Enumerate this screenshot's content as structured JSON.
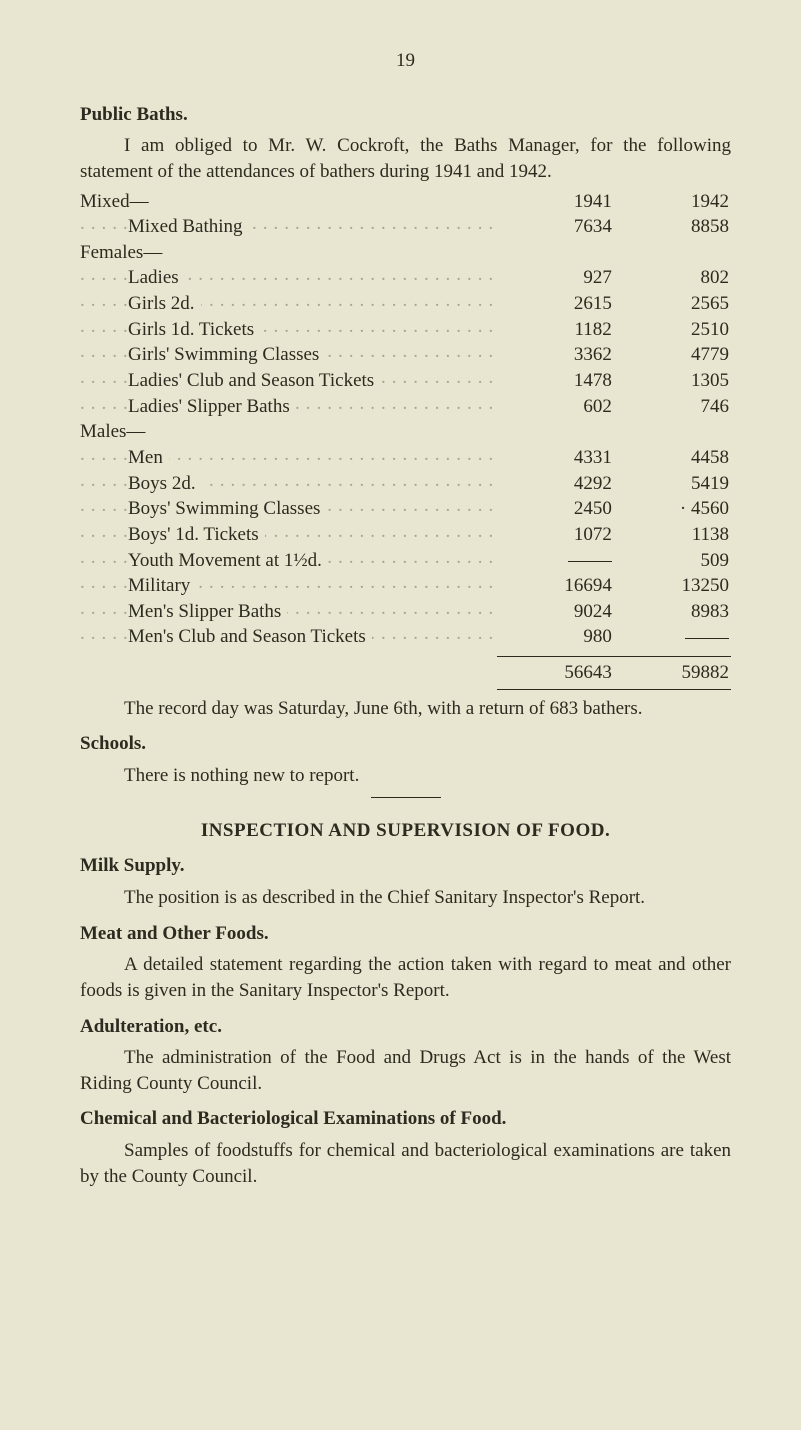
{
  "page_number": "19",
  "public_baths": {
    "heading": "Public Baths.",
    "intro": "I am obliged to Mr. W. Cockroft, the Baths Manager, for the following statement of the attendances of bathers during 1941 and 1942.",
    "year_a": "1941",
    "year_b": "1942",
    "groups": {
      "mixed": {
        "label": "Mixed—",
        "rows": [
          {
            "label": "Mixed Bathing",
            "a": "7634",
            "b": "8858"
          }
        ]
      },
      "females": {
        "label": "Females—",
        "rows": [
          {
            "label": "Ladies",
            "a": "927",
            "b": "802"
          },
          {
            "label": "Girls 2d.",
            "a": "2615",
            "b": "2565"
          },
          {
            "label": "Girls 1d. Tickets",
            "a": "1182",
            "b": "2510"
          },
          {
            "label": "Girls' Swimming Classes",
            "a": "3362",
            "b": "4779"
          },
          {
            "label": "Ladies' Club and Season Tickets",
            "a": "1478",
            "b": "1305"
          },
          {
            "label": "Ladies' Slipper Baths",
            "a": "602",
            "b": "746"
          }
        ]
      },
      "males": {
        "label": "Males—",
        "rows": [
          {
            "label": "Men",
            "a": "4331",
            "b": "4458"
          },
          {
            "label": "Boys 2d.",
            "a": "4292",
            "b": "5419"
          },
          {
            "label": "Boys' Swimming Classes",
            "a": "2450",
            "b": "4560",
            "b_prefix": "·  "
          },
          {
            "label": "Boys' 1d. Tickets",
            "a": "1072",
            "b": "1138"
          },
          {
            "label": "Youth Movement at 1½d.",
            "a": "—",
            "b": "509"
          },
          {
            "label": "Military",
            "a": "16694",
            "b": "13250"
          },
          {
            "label": "Men's Slipper Baths",
            "a": "9024",
            "b": "8983"
          },
          {
            "label": "Men's Club and Season Tickets",
            "a": "980",
            "b": "—"
          }
        ]
      }
    },
    "totals": {
      "a": "56643",
      "b": "59882"
    },
    "record_day": "The record day was Saturday, June 6th, with a return of 683 bathers."
  },
  "schools": {
    "heading": "Schools.",
    "text": "There is nothing new to report."
  },
  "inspection": {
    "title": "INSPECTION AND SUPERVISION OF FOOD.",
    "milk": {
      "heading": "Milk Supply.",
      "text": "The position is as described in the Chief Sanitary Inspector's Report."
    },
    "meat": {
      "heading": "Meat and Other Foods.",
      "text": "A detailed statement regarding the action taken with regard to meat and other foods is given in the Sanitary Inspector's Report."
    },
    "adulteration": {
      "heading": "Adulteration, etc.",
      "text": "The administration of the Food and Drugs Act is in the hands of the West Riding County Council."
    },
    "chem": {
      "heading": "Chemical and Bacteriological Examinations of Food.",
      "text": "Samples of foodstuffs for chemical and bacteriological examinations are taken by the County Council."
    }
  }
}
